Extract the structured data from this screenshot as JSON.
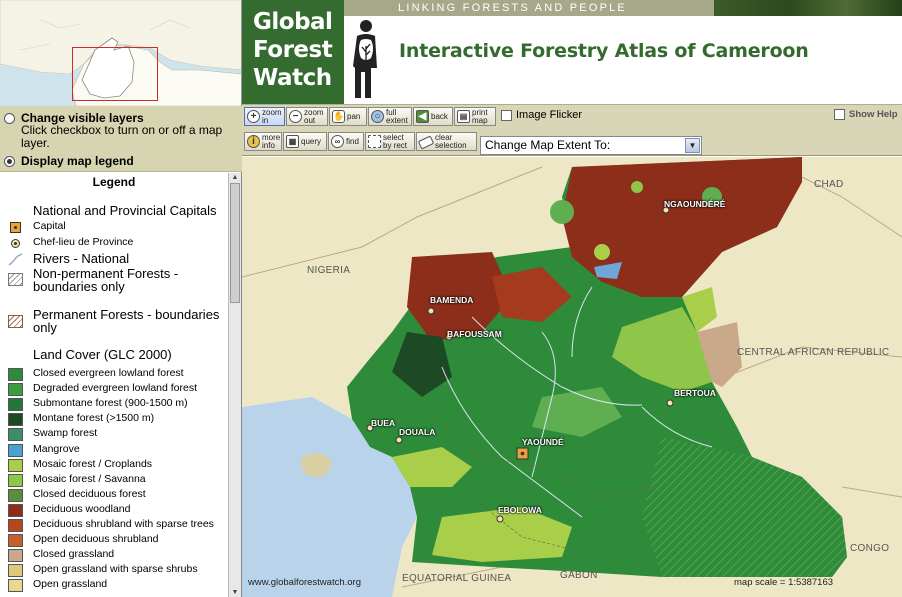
{
  "header": {
    "logo_lines": [
      "Global",
      "Forest",
      "Watch"
    ],
    "tagline": "LINKING FORESTS AND PEOPLE",
    "title": "Interactive Forestry Atlas of Cameroon"
  },
  "controls": {
    "change_layers_label": "Change visible layers",
    "change_layers_desc": "Click checkbox to turn on or off a map layer.",
    "display_legend_label": "Display map legend"
  },
  "legend": {
    "title": "Legend",
    "capitals_heading": "National and Provincial Capitals",
    "capital": "Capital",
    "chef_lieu": "Chef-lieu de Province",
    "rivers": "Rivers - National",
    "non_permanent": "Non-permanent Forests - boundaries only",
    "permanent": "Permanent Forests - boundaries only",
    "land_cover_heading": "Land Cover (GLC 2000)",
    "land_cover": [
      {
        "label": "Closed evergreen lowland forest",
        "color": "#2e8b3a"
      },
      {
        "label": "Degraded evergreen lowland forest",
        "color": "#3c9b43"
      },
      {
        "label": "Submontane forest (900-1500 m)",
        "color": "#22773a"
      },
      {
        "label": "Montane forest (>1500 m)",
        "color": "#1d4a25"
      },
      {
        "label": "Swamp forest",
        "color": "#3a8f6a"
      },
      {
        "label": "Mangrove",
        "color": "#4ba0d8"
      },
      {
        "label": "Mosaic forest / Croplands",
        "color": "#a9cf4a"
      },
      {
        "label": "Mosaic forest / Savanna",
        "color": "#8fc64a"
      },
      {
        "label": "Closed deciduous forest",
        "color": "#5a8f3a"
      },
      {
        "label": "Deciduous woodland",
        "color": "#8c2e1a"
      },
      {
        "label": "Deciduous shrubland with sparse trees",
        "color": "#b5461e"
      },
      {
        "label": "Open deciduous shrubland",
        "color": "#c2622a"
      },
      {
        "label": "Closed grassland",
        "color": "#c9a98a"
      },
      {
        "label": "Open grassland with sparse shrubs",
        "color": "#e0c97c"
      },
      {
        "label": "Open grassland",
        "color": "#e8d890"
      }
    ]
  },
  "toolbar": {
    "zoom_in": "zoom\nin",
    "zoom_out": "zoom\nout",
    "pan": "pan",
    "full_extent": "full\nextent",
    "back": "back",
    "print_map": "print\nmap",
    "image_flicker": "Image Flicker",
    "show_help": "Show Help",
    "more_info": "more\ninfo",
    "query": "query",
    "find": "find",
    "select_by_rect": "select\nby rect",
    "clear_selection": "clear\nselection",
    "extent_select": "Change Map Extent To:"
  },
  "map": {
    "cities": [
      "NGAOUNDÉRÉ",
      "BAMENDA",
      "BAFOUSSAM",
      "BERTOUA",
      "BUEA",
      "DOUALA",
      "YAOUNDÉ",
      "EBOLOWA"
    ],
    "countries": [
      "CHAD",
      "NIGERIA",
      "CENTRAL AFRICAN REPUBLIC",
      "CONGO",
      "EQUATORIAL GUINEA",
      "GABON"
    ],
    "url": "www.globalforestwatch.org",
    "scale": "map scale = 1:5387163"
  }
}
